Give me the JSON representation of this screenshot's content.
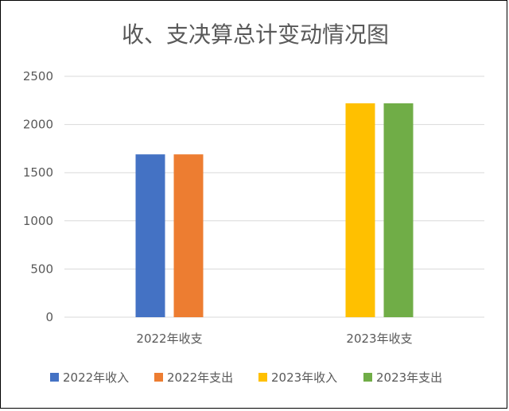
{
  "chart_data": {
    "type": "bar",
    "title": "收、支决算总计变动情况图",
    "categories": [
      "2022年收支",
      "2023年收支"
    ],
    "series": [
      {
        "name": "2022年收入",
        "color": "#4472C4",
        "values": [
          1690,
          null
        ]
      },
      {
        "name": "2022年支出",
        "color": "#ED7D31",
        "values": [
          1690,
          null
        ]
      },
      {
        "name": "2023年收入",
        "color": "#FFC000",
        "values": [
          null,
          2220
        ]
      },
      {
        "name": "2023年支出",
        "color": "#70AD47",
        "values": [
          null,
          2220
        ]
      }
    ],
    "ylim": [
      0,
      2500
    ],
    "yticks": [
      0,
      500,
      1000,
      1500,
      2000,
      2500
    ],
    "grid": true,
    "legend": "bottom"
  }
}
